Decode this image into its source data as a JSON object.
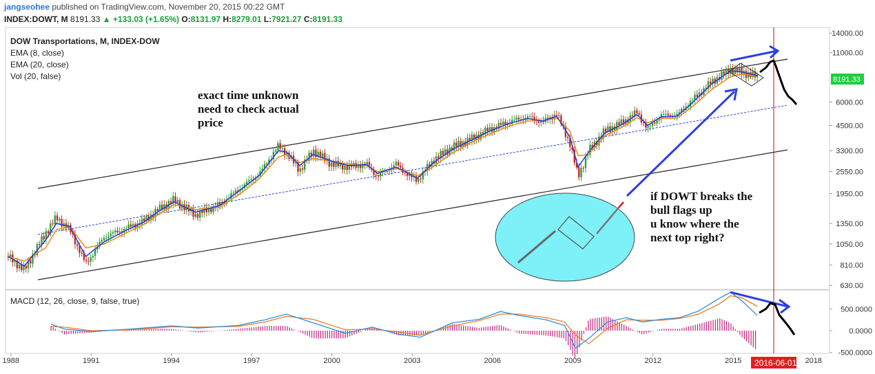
{
  "header": {
    "user": "jangseohee",
    "published": "published on TradingView.com, November 20, 2015 00:22 GMT",
    "symbol": "INDEX:DOWT, M",
    "last": "8191.33",
    "change_arrow": "▲",
    "change": "+133.03 (+1.65%)",
    "o_label": "O:",
    "o": "8131.97",
    "h_label": "H:",
    "h": "8279.01",
    "l_label": "L:",
    "l": "7921.27",
    "c_label": "C:",
    "c": "8191.33"
  },
  "legend": {
    "title": "DOW Transportations, M, INDEX-DOW",
    "ema8": "EMA (8, close)",
    "ema20": "EMA (20, close)",
    "vol": "Vol (20, false)",
    "macd": "MACD (12, 26, close, 9, false, true)"
  },
  "annotations": {
    "left_note": [
      "exact time unknown",
      "need to check actual",
      "price"
    ],
    "right_note": [
      "if DOWT breaks the",
      "bull flags up",
      "u know where the",
      "next top right?"
    ]
  },
  "price_badge": "8191.33",
  "date_badge": "2016-06-01",
  "colors": {
    "candle_up": "#2e9e3a",
    "candle_down": "#c62828",
    "ema8": "#1f3fd6",
    "ema20": "#f08a12",
    "macd_line": "#2a8fe0",
    "signal_line": "#f07b22",
    "hist": "#c0237a",
    "arrow": "#2a3fe6",
    "channel": "#222222",
    "vline": "#d40000",
    "badge_green": "#1fcf3f",
    "badge_red": "#e02020",
    "ellipse": "#7df0f8"
  },
  "chart_data": [
    {
      "type": "line",
      "title": "DOW Transportations, M, INDEX-DOW",
      "scale": "log",
      "x_ticks": [
        "1988",
        "1991",
        "1994",
        "1997",
        "2000",
        "2003",
        "2006",
        "2009",
        "2012",
        "2015",
        "2018"
      ],
      "y_ticks": [
        "14000.00",
        "11000.00",
        "6000.00",
        "4500.00",
        "3300.00",
        "2550.00",
        "1950.00",
        "1350.00",
        "1050.00",
        "810.00",
        "630.00"
      ],
      "ylim": [
        600,
        15000
      ],
      "xlim": [
        1987.8,
        2018.6
      ],
      "series": [
        {
          "name": "DOWT",
          "x": [
            1987.9,
            1988.5,
            1989.3,
            1989.7,
            1990.2,
            1990.8,
            1991.5,
            1992.2,
            1993.0,
            1993.5,
            1994.1,
            1994.9,
            1995.8,
            1996.6,
            1997.3,
            1998.0,
            1998.3,
            1998.8,
            1999.3,
            2000.0,
            2000.6,
            2001.3,
            2001.7,
            2002.4,
            2002.9,
            2003.2,
            2003.8,
            2004.5,
            2005.2,
            2005.9,
            2006.6,
            2007.3,
            2007.9,
            2008.4,
            2008.9,
            2009.2,
            2009.6,
            2010.2,
            2010.9,
            2011.4,
            2011.8,
            2012.3,
            2012.9,
            2013.5,
            2014.2,
            2014.9,
            2015.3,
            2015.9
          ],
          "y": [
            900,
            760,
            1200,
            1450,
            1250,
            820,
            1150,
            1250,
            1400,
            1600,
            1800,
            1500,
            1700,
            2100,
            2500,
            3500,
            3200,
            2600,
            3300,
            2800,
            2700,
            2800,
            2400,
            2800,
            2400,
            2300,
            2950,
            3450,
            3800,
            4300,
            4700,
            5000,
            4700,
            5200,
            3600,
            2400,
            3300,
            4200,
            4700,
            5300,
            4300,
            5100,
            5100,
            6200,
            7700,
            9000,
            8700,
            8191
          ]
        }
      ],
      "ema8": [
        900,
        800,
        1100,
        1350,
        1300,
        900,
        1080,
        1220,
        1380,
        1560,
        1760,
        1550,
        1680,
        2050,
        2450,
        3300,
        3250,
        2750,
        3150,
        2900,
        2750,
        2780,
        2500,
        2700,
        2480,
        2350,
        2850,
        3350,
        3750,
        4200,
        4600,
        4900,
        4750,
        5050,
        3900,
        2700,
        3250,
        4100,
        4600,
        5150,
        4500,
        5000,
        5050,
        6000,
        7500,
        8800,
        8700,
        8300
      ],
      "ema20": [
        900,
        850,
        1000,
        1250,
        1300,
        1000,
        1050,
        1180,
        1340,
        1500,
        1700,
        1600,
        1650,
        1950,
        2350,
        3050,
        3150,
        2850,
        3000,
        2900,
        2800,
        2750,
        2550,
        2650,
        2520,
        2420,
        2720,
        3200,
        3650,
        4050,
        4450,
        4750,
        4780,
        4950,
        4200,
        3100,
        3150,
        3950,
        4450,
        4950,
        4650,
        4900,
        4950,
        5700,
        7000,
        8200,
        8450,
        8300
      ]
    },
    {
      "type": "line",
      "title": "MACD (12, 26, close, 9, false, true)",
      "y_ticks": [
        "500.0000",
        "0.0000",
        "-500.0000"
      ],
      "ylim": [
        -520,
        930
      ],
      "series": [
        {
          "name": "MACD",
          "x": [
            1989.5,
            1990.0,
            1991.0,
            1992.5,
            1994.0,
            1995.0,
            1996.5,
            1997.5,
            1998.3,
            1999.3,
            2000.5,
            2001.5,
            2002.5,
            2003.3,
            2004.5,
            2005.5,
            2006.3,
            2007.0,
            2008.0,
            2008.7,
            2009.1,
            2009.6,
            2010.3,
            2011.0,
            2011.6,
            2012.3,
            2013.0,
            2013.7,
            2014.5,
            2014.9,
            2015.3,
            2015.9
          ],
          "y": [
            150,
            40,
            -20,
            40,
            110,
            60,
            120,
            250,
            380,
            180,
            -60,
            80,
            -80,
            -150,
            180,
            260,
            440,
            350,
            250,
            120,
            -400,
            -180,
            200,
            300,
            200,
            260,
            300,
            450,
            750,
            880,
            700,
            350
          ]
        },
        {
          "name": "Signal",
          "x": [
            1989.5,
            1990.0,
            1991.0,
            1992.5,
            1994.0,
            1995.0,
            1996.5,
            1997.5,
            1998.3,
            1999.3,
            2000.5,
            2001.5,
            2002.5,
            2003.3,
            2004.5,
            2005.5,
            2006.3,
            2007.0,
            2008.0,
            2008.7,
            2009.1,
            2009.6,
            2010.3,
            2011.0,
            2011.6,
            2012.3,
            2013.0,
            2013.7,
            2014.5,
            2014.9,
            2015.3,
            2015.9
          ],
          "y": [
            100,
            80,
            0,
            20,
            90,
            80,
            100,
            200,
            330,
            260,
            20,
            40,
            -30,
            -100,
            110,
            230,
            380,
            380,
            300,
            200,
            -100,
            -300,
            50,
            250,
            240,
            240,
            280,
            380,
            620,
            800,
            760,
            560
          ]
        }
      ]
    }
  ]
}
